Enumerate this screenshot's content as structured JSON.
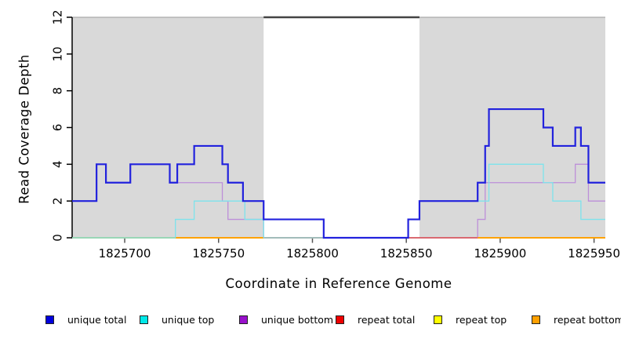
{
  "axes": {
    "y_title": "Read Coverage Depth",
    "x_title": "Coordinate in Reference Genome"
  },
  "chart_data": {
    "type": "line",
    "subtype": "step-coverage-plot",
    "title": "",
    "xlabel": "Coordinate in Reference Genome",
    "ylabel": "Read Coverage Depth",
    "xlim": [
      1825672,
      1825956
    ],
    "ylim": [
      0,
      12
    ],
    "x_ticks": [
      1825700,
      1825750,
      1825800,
      1825850,
      1825900,
      1825950
    ],
    "y_ticks": [
      0,
      2,
      4,
      6,
      8,
      10,
      12
    ],
    "grid": false,
    "legend_position": "bottom",
    "background": "#ffffff",
    "shaded_region_color": "#d9d9d9",
    "shaded_regions": [
      {
        "x0": 1825672,
        "x1": 1825774
      },
      {
        "x0": 1825857,
        "x1": 1825956
      }
    ],
    "gap_top_bar": {
      "x0": 1825774,
      "x1": 1825857,
      "y": 12,
      "color": "#444444"
    },
    "series": [
      {
        "name": "unique total",
        "color": "#2222dd",
        "width": 2.2,
        "steps": [
          [
            1825672,
            2
          ],
          [
            1825685,
            4
          ],
          [
            1825690,
            3
          ],
          [
            1825703,
            4
          ],
          [
            1825724,
            3
          ],
          [
            1825728,
            4
          ],
          [
            1825737,
            5
          ],
          [
            1825752,
            4
          ],
          [
            1825755,
            3
          ],
          [
            1825763,
            2
          ],
          [
            1825774,
            1
          ],
          [
            1825806,
            0
          ],
          [
            1825851,
            1
          ],
          [
            1825857,
            2
          ],
          [
            1825888,
            3
          ],
          [
            1825892,
            5
          ],
          [
            1825894,
            7
          ],
          [
            1825923,
            6
          ],
          [
            1825928,
            5
          ],
          [
            1825940,
            6
          ],
          [
            1825943,
            5
          ],
          [
            1825947,
            3
          ]
        ]
      },
      {
        "name": "unique top",
        "color": "#7de3ec",
        "width": 1.3,
        "steps": [
          [
            1825672,
            0
          ],
          [
            1825727,
            1
          ],
          [
            1825737,
            2
          ],
          [
            1825764,
            1
          ],
          [
            1825774,
            0
          ],
          [
            1825851,
            1
          ],
          [
            1825857,
            2
          ],
          [
            1825894,
            4
          ],
          [
            1825923,
            3
          ],
          [
            1825928,
            2
          ],
          [
            1825943,
            1
          ]
        ]
      },
      {
        "name": "unique bottom",
        "color": "#bd8fd9",
        "width": 1.3,
        "steps": [
          [
            1825672,
            2
          ],
          [
            1825685,
            4
          ],
          [
            1825690,
            3
          ],
          [
            1825703,
            4
          ],
          [
            1825724,
            3
          ],
          [
            1825752,
            2
          ],
          [
            1825755,
            1
          ],
          [
            1825774,
            0
          ],
          [
            1825888,
            1
          ],
          [
            1825892,
            3
          ],
          [
            1825940,
            4
          ],
          [
            1825947,
            2
          ]
        ]
      },
      {
        "name": "repeat total",
        "color": "#ee0000",
        "width": 1.3,
        "steps": [
          [
            1825672,
            0
          ]
        ]
      },
      {
        "name": "repeat top",
        "color": "#ffff00",
        "width": 1.3,
        "steps": [
          [
            1825672,
            0
          ]
        ]
      },
      {
        "name": "repeat bottom",
        "color": "#ffa000",
        "width": 1.8,
        "steps": [
          [
            1825672,
            0
          ]
        ]
      }
    ],
    "baseline_blend_segments": [
      {
        "x0": 1825672,
        "x1": 1825727,
        "color": "#98d898",
        "width": 1.6
      },
      {
        "x0": 1825727,
        "x1": 1825774,
        "color": "#ffa000",
        "width": 1.8
      },
      {
        "x0": 1825774,
        "x1": 1825888,
        "color": "#d4567c",
        "width": 1.6
      },
      {
        "x0": 1825888,
        "x1": 1825956,
        "color": "#ffa000",
        "width": 1.8
      }
    ]
  },
  "legend": {
    "items": [
      {
        "label": "unique total",
        "color": "#0000dd"
      },
      {
        "label": "unique top",
        "color": "#00e8e8"
      },
      {
        "label": "unique bottom",
        "color": "#9911cc"
      },
      {
        "label": "repeat total",
        "color": "#ee0000"
      },
      {
        "label": "repeat top",
        "color": "#ffff00"
      },
      {
        "label": "repeat bottom",
        "color": "#ffa000"
      }
    ]
  }
}
